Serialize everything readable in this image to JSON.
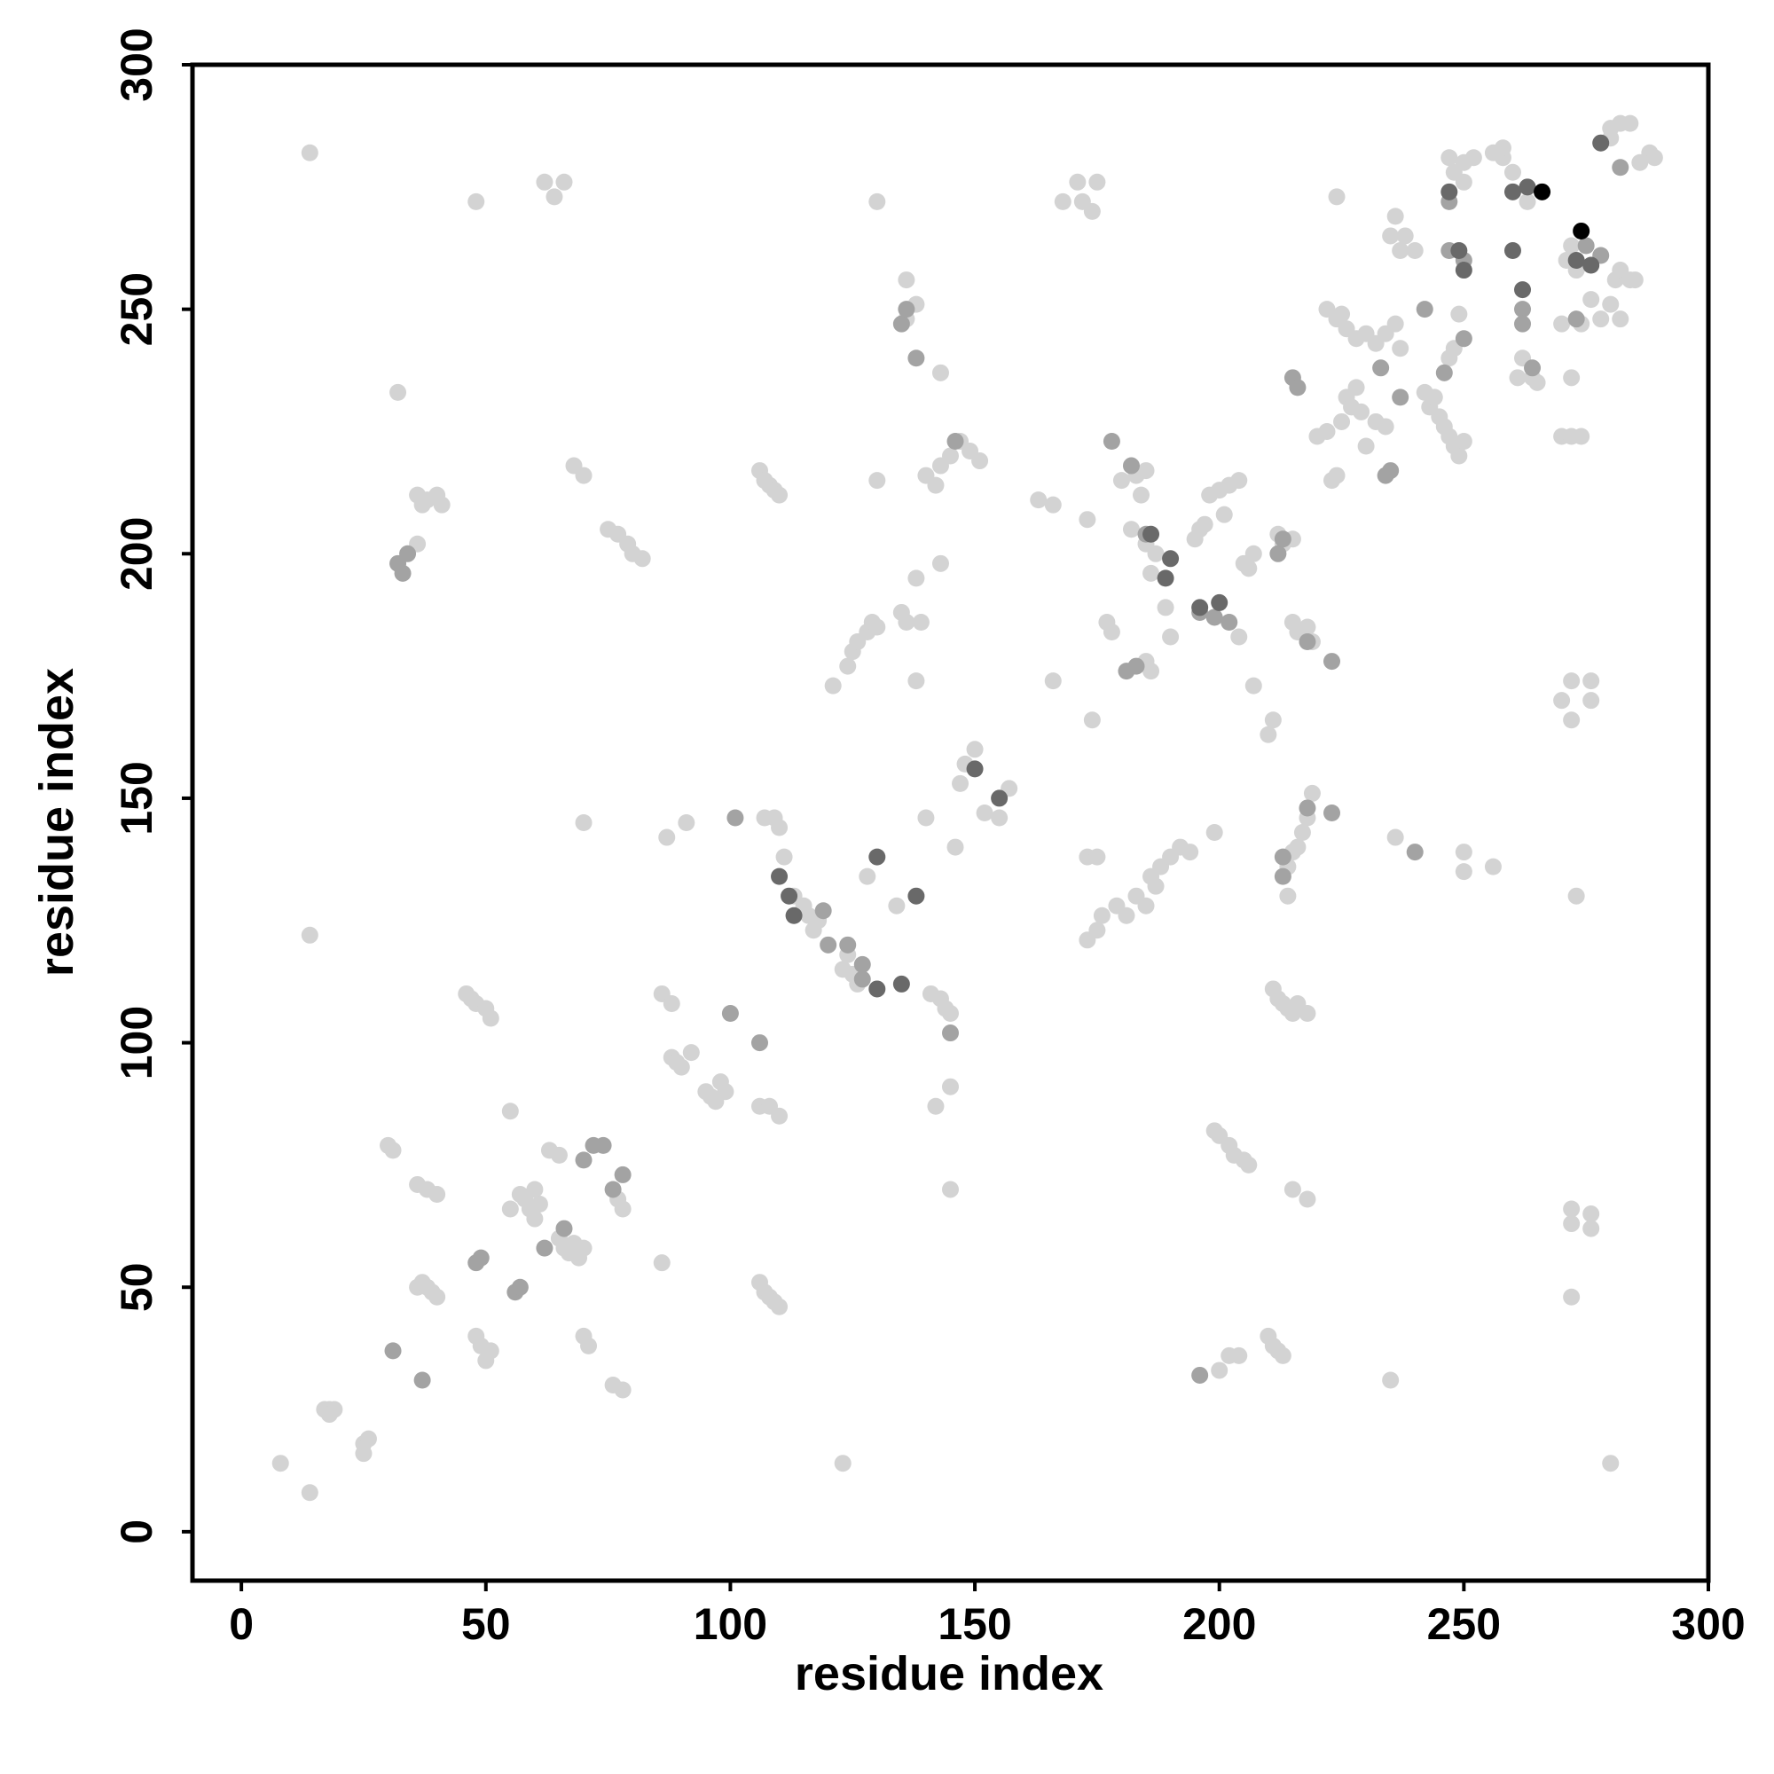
{
  "chart_data": {
    "type": "scatter",
    "xlabel": "residue index",
    "ylabel": "residue index",
    "xlim": [
      -10,
      300
    ],
    "ylim": [
      -10,
      300
    ],
    "xticks": [
      0,
      50,
      100,
      150,
      200,
      250,
      300
    ],
    "yticks": [
      0,
      50,
      100,
      150,
      200,
      250,
      300
    ],
    "series": [
      {
        "color": "#d3d3d3",
        "x": [
          8,
          14,
          17,
          18,
          19,
          18,
          25,
          25,
          26,
          30,
          31,
          36,
          38,
          40,
          36,
          37,
          38,
          40,
          39,
          46,
          47,
          48,
          50,
          51,
          48,
          49,
          51,
          50,
          55,
          55,
          57,
          58,
          60,
          59,
          60,
          61,
          63,
          65,
          65,
          66,
          67,
          68,
          69,
          70,
          70,
          71,
          76,
          78,
          77,
          78,
          86,
          86,
          88,
          87,
          91,
          70,
          88,
          89,
          90,
          92,
          95,
          96,
          97,
          98,
          99,
          106,
          107,
          108,
          109,
          110,
          106,
          108,
          110,
          106,
          107,
          108,
          109,
          110,
          107,
          109,
          110,
          111,
          113,
          115,
          116,
          117,
          118,
          123,
          124,
          125,
          126,
          123,
          121,
          124,
          125,
          126,
          128,
          129,
          130,
          130,
          130,
          128,
          134,
          135,
          136,
          138,
          138,
          139,
          140,
          141,
          143,
          144,
          145,
          142,
          145,
          145,
          146,
          147,
          148,
          150,
          152,
          155,
          157,
          143,
          145,
          147,
          149,
          151,
          140,
          142,
          136,
          138,
          136,
          143,
          143,
          32,
          14,
          14,
          48,
          62,
          64,
          66,
          68,
          70,
          75,
          77,
          79,
          80,
          82,
          36,
          37,
          38,
          40,
          41,
          36,
          163,
          166,
          166,
          168,
          171,
          172,
          174,
          175,
          173,
          174,
          173,
          175,
          173,
          175,
          176,
          177,
          178,
          179,
          181,
          183,
          185,
          186,
          187,
          188,
          190,
          192,
          194,
          180,
          183,
          184,
          185,
          182,
          185,
          187,
          186,
          189,
          190,
          185,
          186,
          195,
          196,
          197,
          198,
          200,
          201,
          202,
          204,
          205,
          206,
          207,
          204,
          207,
          199,
          199,
          200,
          202,
          203,
          205,
          206,
          200,
          202,
          204,
          210,
          211,
          212,
          213,
          210,
          211,
          212,
          213,
          215,
          215,
          216,
          218,
          211,
          212,
          213,
          214,
          215,
          216,
          218,
          214,
          214,
          215,
          216,
          217,
          218,
          219,
          215,
          218,
          219,
          220,
          222,
          223,
          224,
          224,
          225,
          226,
          227,
          228,
          229,
          230,
          222,
          224,
          225,
          226,
          228,
          230,
          232,
          234,
          236,
          237,
          235,
          237,
          238,
          240,
          236,
          232,
          234,
          235,
          236,
          242,
          243,
          244,
          245,
          246,
          247,
          248,
          249,
          250,
          247,
          248,
          249,
          248,
          247,
          250,
          250,
          252,
          256,
          258,
          258,
          260,
          263,
          256,
          250,
          250,
          261,
          262,
          264,
          265,
          272,
          270,
          272,
          274,
          274,
          270,
          271,
          272,
          273,
          276,
          278,
          280,
          282,
          281,
          282,
          284,
          285,
          276,
          276,
          272,
          270,
          272,
          273,
          272,
          272,
          276,
          276,
          272,
          280,
          280,
          282,
          284,
          286,
          288,
          289,
          278,
          280
        ],
        "values": [
          14,
          8,
          25,
          25,
          25,
          24,
          18,
          16,
          19,
          79,
          78,
          71,
          70,
          69,
          50,
          51,
          50,
          48,
          49,
          110,
          109,
          108,
          107,
          105,
          40,
          38,
          37,
          35,
          86,
          66,
          69,
          68,
          70,
          66,
          64,
          67,
          78,
          77,
          60,
          58,
          57,
          59,
          56,
          58,
          40,
          38,
          30,
          29,
          68,
          66,
          55,
          110,
          108,
          142,
          145,
          145,
          97,
          96,
          95,
          98,
          90,
          89,
          88,
          92,
          90,
          51,
          49,
          48,
          47,
          46,
          87,
          87,
          85,
          217,
          215,
          214,
          213,
          212,
          146,
          146,
          144,
          138,
          130,
          128,
          126,
          123,
          125,
          115,
          118,
          114,
          112,
          14,
          173,
          177,
          180,
          182,
          184,
          186,
          185,
          215,
          272,
          134,
          128,
          188,
          186,
          195,
          174,
          186,
          146,
          110,
          109,
          107,
          106,
          87,
          91,
          70,
          140,
          153,
          157,
          160,
          147,
          146,
          152,
          218,
          220,
          223,
          221,
          219,
          216,
          214,
          248,
          251,
          256,
          237,
          198,
          233,
          282,
          122,
          272,
          276,
          273,
          276,
          218,
          216,
          205,
          204,
          202,
          200,
          199,
          212,
          210,
          211,
          212,
          210,
          202,
          211,
          210,
          174,
          272,
          276,
          272,
          270,
          276,
          207,
          166,
          138,
          138,
          121,
          123,
          126,
          186,
          184,
          128,
          126,
          130,
          128,
          134,
          132,
          136,
          138,
          140,
          139,
          215,
          216,
          212,
          217,
          205,
          202,
          200,
          196,
          189,
          183,
          178,
          176,
          203,
          205,
          206,
          212,
          213,
          208,
          214,
          215,
          198,
          197,
          200,
          183,
          173,
          143,
          82,
          81,
          79,
          77,
          76,
          75,
          33,
          36,
          36,
          40,
          38,
          37,
          36,
          163,
          166,
          204,
          202,
          203,
          186,
          184,
          185,
          111,
          109,
          108,
          107,
          106,
          108,
          106,
          130,
          136,
          139,
          140,
          143,
          146,
          151,
          70,
          68,
          182,
          224,
          225,
          215,
          216,
          273,
          227,
          232,
          230,
          234,
          229,
          222,
          250,
          248,
          249,
          246,
          244,
          245,
          243,
          245,
          247,
          242,
          265,
          262,
          265,
          262,
          269,
          227,
          226,
          31,
          142,
          233,
          230,
          232,
          228,
          226,
          224,
          222,
          220,
          223,
          240,
          242,
          249,
          278,
          281,
          280,
          276,
          281,
          282,
          281,
          283,
          278,
          272,
          136,
          135,
          139,
          236,
          240,
          236,
          235,
          236,
          224,
          224,
          224,
          247,
          247,
          260,
          263,
          258,
          252,
          248,
          251,
          248,
          256,
          258,
          256,
          256,
          174,
          170,
          174,
          170,
          166,
          130,
          66,
          63,
          65,
          62,
          48,
          14,
          287,
          288,
          288,
          280,
          282,
          281,
          284,
          285
        ]
      },
      {
        "color": "#a3a3a3",
        "x": [
          31,
          37,
          32,
          33,
          34,
          48,
          49,
          56,
          57,
          62,
          66,
          70,
          72,
          74,
          76,
          78,
          100,
          101,
          106,
          119,
          120,
          124,
          127,
          127,
          135,
          136,
          138,
          145,
          146,
          178,
          182,
          185,
          181,
          183,
          196,
          199,
          202,
          212,
          213,
          218,
          223,
          213,
          213,
          218,
          223,
          215,
          216,
          233,
          237,
          234,
          235,
          240,
          246,
          242,
          250,
          247,
          247,
          250,
          262,
          262,
          264,
          273,
          275,
          278,
          282,
          196
        ],
        "values": [
          37,
          31,
          198,
          196,
          200,
          55,
          56,
          49,
          50,
          58,
          62,
          76,
          79,
          79,
          70,
          73,
          106,
          146,
          100,
          127,
          120,
          120,
          116,
          113,
          247,
          250,
          240,
          102,
          223,
          223,
          218,
          204,
          176,
          177,
          188,
          187,
          186,
          200,
          203,
          182,
          178,
          134,
          138,
          148,
          147,
          236,
          234,
          238,
          232,
          216,
          217,
          139,
          237,
          250,
          244,
          272,
          262,
          260,
          250,
          247,
          238,
          248,
          263,
          261,
          279,
          32
        ]
      },
      {
        "color": "#696969",
        "x": [
          110,
          112,
          113,
          130,
          135,
          130,
          138,
          150,
          155,
          186,
          189,
          190,
          196,
          200,
          247,
          249,
          250,
          262,
          263,
          260,
          260,
          273,
          276,
          278
        ],
        "values": [
          134,
          130,
          126,
          138,
          112,
          111,
          130,
          156,
          150,
          204,
          195,
          199,
          189,
          190,
          274,
          262,
          258,
          254,
          275,
          274,
          262,
          260,
          259,
          284
        ]
      },
      {
        "color": "#000000",
        "x": [
          266,
          274
        ],
        "values": [
          274,
          266
        ]
      }
    ]
  }
}
